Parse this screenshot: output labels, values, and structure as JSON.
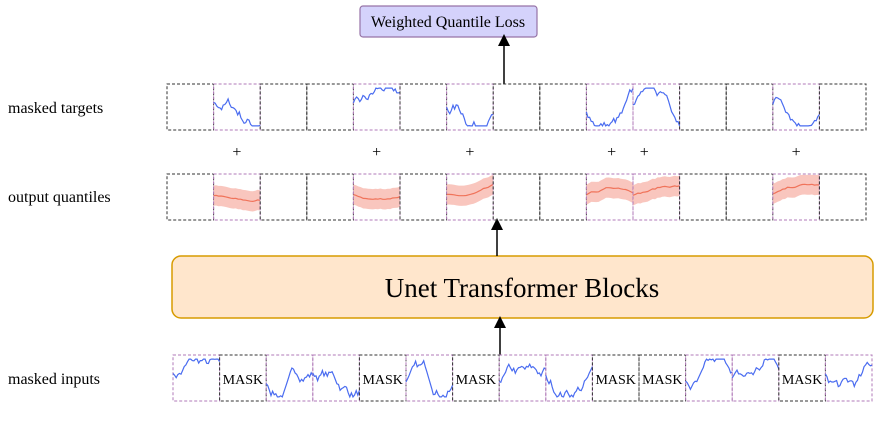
{
  "loss_box": {
    "label": "Weighted Quantile Loss",
    "fill": "#d4d2fb",
    "stroke": "#9673a6"
  },
  "unet_box": {
    "label": "Unet Transformer Blocks",
    "fill": "#ffe6cc",
    "stroke": "#d79b00"
  },
  "row_labels": {
    "targets": "masked targets",
    "quantiles": "output quantiles",
    "inputs": "masked inputs"
  },
  "mask_label": "MASK",
  "plus_symbol": "+",
  "patch_count": 15,
  "masked_patches": [
    1,
    4,
    6,
    9,
    10,
    13
  ],
  "colors": {
    "series": "#4a6cf0",
    "quantile_line": "#f0735a",
    "quantile_band": "#f8b8ae",
    "masked_border": "#b07ab8",
    "patch_border": "#333333"
  }
}
